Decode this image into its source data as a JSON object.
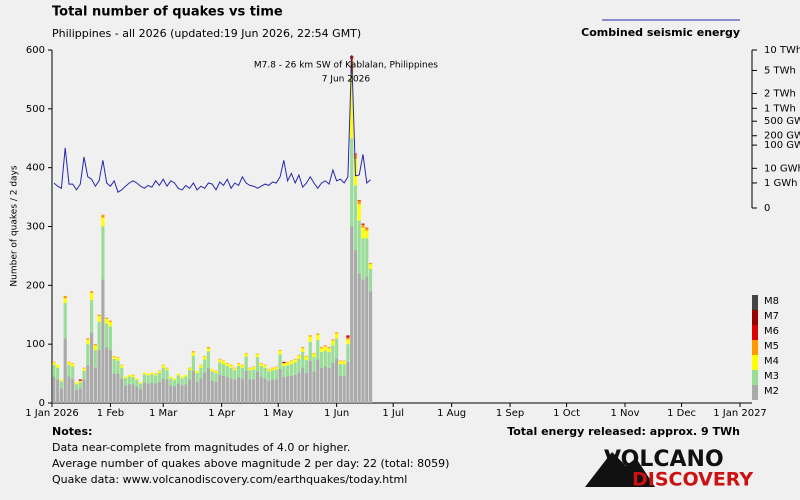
{
  "chart_data": {
    "type": "bar",
    "stacked": true,
    "title": "Total number of quakes vs time",
    "subtitle": "Philippines - all 2026 (updated:19 Jun 2026, 22:54 GMT)",
    "y_label": "Number of quakes / 2 days",
    "annotation": {
      "lines": [
        "M7.8 - 26 km SW of Kablalan, Philippines",
        "7 Jun 2026"
      ],
      "x": 157
    },
    "xlim": [
      0,
      365
    ],
    "xticks": [
      {
        "value": 0,
        "label": "1 Jan 2026"
      },
      {
        "value": 31,
        "label": "1 Feb"
      },
      {
        "value": 59,
        "label": "1 Mar"
      },
      {
        "value": 90,
        "label": "1 Apr"
      },
      {
        "value": 120,
        "label": "1 May"
      },
      {
        "value": 151,
        "label": "1 Jun"
      },
      {
        "value": 181,
        "label": "1 Jul"
      },
      {
        "value": 212,
        "label": "1 Aug"
      },
      {
        "value": 243,
        "label": "1 Sep"
      },
      {
        "value": 273,
        "label": "1 Oct"
      },
      {
        "value": 304,
        "label": "1 Nov"
      },
      {
        "value": 334,
        "label": "1 Dec"
      },
      {
        "value": 365,
        "label": "1 Jan 2027"
      }
    ],
    "ylim": [
      0,
      600
    ],
    "yticks": [
      0,
      100,
      200,
      300,
      400,
      500,
      600
    ],
    "y2lim": [
      0,
      10000
    ],
    "y2scale": "power",
    "y2exponent": 0.2,
    "y2ticks": [
      {
        "value": 10000,
        "label": "10 TWh"
      },
      {
        "value": 5000,
        "label": "5 TWh"
      },
      {
        "value": 2000,
        "label": "2 TWh"
      },
      {
        "value": 1000,
        "label": "1 TWh"
      },
      {
        "value": 500,
        "label": "500 GWh"
      },
      {
        "value": 200,
        "label": "200 GWh"
      },
      {
        "value": 100,
        "label": "100 GWh"
      },
      {
        "value": 10,
        "label": "10 GWh"
      },
      {
        "value": 1,
        "label": "1 GWh"
      },
      0
    ],
    "x": [
      0,
      2,
      4,
      6,
      8,
      10,
      12,
      14,
      16,
      18,
      20,
      22,
      24,
      26,
      28,
      30,
      32,
      34,
      36,
      38,
      40,
      42,
      44,
      46,
      48,
      50,
      52,
      54,
      56,
      58,
      60,
      62,
      64,
      66,
      68,
      70,
      72,
      74,
      76,
      78,
      80,
      82,
      84,
      86,
      88,
      90,
      92,
      94,
      96,
      98,
      100,
      102,
      104,
      106,
      108,
      110,
      112,
      114,
      116,
      118,
      120,
      122,
      124,
      126,
      128,
      130,
      132,
      134,
      136,
      138,
      140,
      142,
      144,
      146,
      148,
      150,
      152,
      154,
      156,
      158,
      160,
      162,
      164,
      166,
      168
    ],
    "series": [
      {
        "name": "M2",
        "color": "#aaaaaa",
        "values": [
          45,
          40,
          25,
          110,
          45,
          40,
          22,
          25,
          40,
          65,
          120,
          60,
          90,
          210,
          95,
          90,
          50,
          50,
          42,
          30,
          32,
          32,
          28,
          24,
          35,
          33,
          34,
          33,
          36,
          42,
          40,
          30,
          28,
          33,
          30,
          32,
          40,
          55,
          36,
          42,
          52,
          60,
          38,
          36,
          48,
          46,
          44,
          42,
          40,
          44,
          42,
          55,
          40,
          40,
          54,
          44,
          42,
          38,
          40,
          40,
          58,
          44,
          45,
          46,
          48,
          52,
          60,
          51,
          72,
          54,
          74,
          60,
          62,
          60,
          68,
          76,
          46,
          46,
          70,
          300,
          260,
          220,
          210,
          215,
          190
        ]
      },
      {
        "name": "M3",
        "color": "#99dd99",
        "values": [
          20,
          20,
          12,
          60,
          20,
          22,
          10,
          10,
          15,
          35,
          55,
          30,
          48,
          90,
          40,
          40,
          25,
          22,
          18,
          12,
          13,
          12,
          11,
          9,
          14,
          14,
          15,
          14,
          15,
          18,
          16,
          12,
          11,
          14,
          12,
          13,
          16,
          25,
          15,
          18,
          22,
          28,
          16,
          15,
          21,
          20,
          19,
          18,
          16,
          19,
          18,
          24,
          16,
          17,
          24,
          19,
          18,
          16,
          16,
          17,
          25,
          19,
          19,
          20,
          21,
          23,
          27,
          22,
          32,
          24,
          33,
          27,
          27,
          27,
          30,
          34,
          20,
          20,
          30,
          150,
          110,
          90,
          70,
          65,
          38
        ]
      },
      {
        "name": "M4",
        "color": "#ffff00",
        "values": [
          4,
          5,
          3,
          8,
          4,
          5,
          3,
          2,
          4,
          8,
          12,
          8,
          10,
          15,
          8,
          8,
          4,
          5,
          4,
          3,
          3,
          3,
          3,
          2,
          3,
          3,
          3,
          2,
          3,
          4,
          3,
          3,
          3,
          3,
          3,
          3,
          3,
          6,
          4,
          4,
          5,
          5,
          4,
          3,
          5,
          5,
          4,
          4,
          3,
          4,
          4,
          5,
          3,
          4,
          5,
          4,
          4,
          3,
          3,
          4,
          6,
          4,
          5,
          5,
          5,
          6,
          6,
          6,
          9,
          6,
          9,
          6,
          7,
          6,
          8,
          8,
          5,
          5,
          8,
          110,
          45,
          28,
          18,
          13,
          8
        ]
      },
      {
        "name": "M5",
        "color": "#ff9900",
        "values": [
          1,
          0,
          0,
          4,
          1,
          1,
          0,
          1,
          1,
          2,
          3,
          2,
          2,
          5,
          2,
          2,
          1,
          1,
          1,
          0,
          0,
          1,
          0,
          0,
          0,
          0,
          0,
          1,
          1,
          1,
          1,
          0,
          0,
          0,
          0,
          0,
          1,
          2,
          0,
          1,
          1,
          2,
          0,
          1,
          1,
          1,
          1,
          1,
          1,
          1,
          1,
          1,
          1,
          1,
          1,
          1,
          1,
          1,
          1,
          1,
          1,
          1,
          1,
          1,
          1,
          1,
          2,
          1,
          2,
          1,
          2,
          2,
          2,
          2,
          2,
          2,
          1,
          1,
          3,
          25,
          8,
          6,
          5,
          4,
          2
        ]
      },
      {
        "name": "M6",
        "color": "#dd0000",
        "values": [
          0,
          0,
          0,
          0,
          0,
          0,
          0,
          2,
          0,
          0,
          0,
          0,
          0,
          0,
          0,
          0,
          0,
          0,
          0,
          0,
          0,
          0,
          0,
          0,
          0,
          0,
          0,
          0,
          0,
          0,
          0,
          0,
          0,
          0,
          0,
          0,
          0,
          0,
          0,
          0,
          0,
          0,
          0,
          0,
          0,
          0,
          0,
          0,
          0,
          0,
          0,
          0,
          0,
          0,
          0,
          0,
          0,
          0,
          0,
          0,
          0,
          2,
          0,
          0,
          0,
          0,
          0,
          0,
          0,
          0,
          0,
          0,
          0,
          0,
          0,
          0,
          0,
          0,
          4,
          4,
          1,
          1,
          2,
          1,
          0
        ]
      },
      {
        "name": "M7",
        "color": "#990000",
        "values": [
          0,
          0,
          0,
          0,
          0,
          0,
          0,
          0,
          0,
          0,
          0,
          0,
          0,
          0,
          0,
          0,
          0,
          0,
          0,
          0,
          0,
          0,
          0,
          0,
          0,
          0,
          0,
          0,
          0,
          0,
          0,
          0,
          0,
          0,
          0,
          0,
          0,
          0,
          0,
          0,
          0,
          0,
          0,
          0,
          0,
          0,
          0,
          0,
          0,
          0,
          0,
          0,
          0,
          0,
          0,
          0,
          0,
          0,
          0,
          0,
          0,
          0,
          0,
          0,
          0,
          0,
          0,
          0,
          0,
          0,
          0,
          0,
          0,
          0,
          0,
          0,
          0,
          0,
          0,
          1,
          0,
          0,
          0,
          0,
          0
        ]
      },
      {
        "name": "M8",
        "color": "#444444",
        "values": [
          0,
          0,
          0,
          0,
          0,
          0,
          0,
          0,
          0,
          0,
          0,
          0,
          0,
          0,
          0,
          0,
          0,
          0,
          0,
          0,
          0,
          0,
          0,
          0,
          0,
          0,
          0,
          0,
          0,
          0,
          0,
          0,
          0,
          0,
          0,
          0,
          0,
          0,
          0,
          0,
          0,
          0,
          0,
          0,
          0,
          0,
          0,
          0,
          0,
          0,
          0,
          0,
          0,
          0,
          0,
          0,
          0,
          0,
          0,
          0,
          0,
          0,
          0,
          0,
          0,
          0,
          0,
          0,
          0,
          0,
          0,
          0,
          0,
          0,
          0,
          0,
          0,
          0,
          0,
          0,
          0,
          0,
          0,
          0,
          0
        ]
      },
      {
        "name": "Combined seismic energy",
        "color": "#2626b0",
        "type": "line",
        "axis": "y2",
        "values": [
          1,
          0.5,
          0.3,
          80,
          0.8,
          0.8,
          0.2,
          0.8,
          35,
          3,
          2,
          0.5,
          1.5,
          25,
          1,
          0.5,
          1.5,
          0.1,
          0.2,
          0.5,
          1,
          1.5,
          1,
          0.5,
          0.3,
          0.6,
          0.4,
          1.5,
          0.6,
          2,
          0.5,
          1.5,
          1,
          0.3,
          0.2,
          0.6,
          0.3,
          1,
          0.2,
          0.5,
          0.3,
          1,
          0.8,
          0.2,
          1.2,
          0.6,
          2,
          0.3,
          1,
          0.6,
          3,
          1,
          0.6,
          0.5,
          0.3,
          0.5,
          0.8,
          0.6,
          1.2,
          1,
          3,
          25,
          1.5,
          5,
          1,
          4,
          0.4,
          1,
          3,
          1,
          0.3,
          1,
          1.5,
          0.8,
          8,
          1.5,
          2,
          1,
          3,
          8500,
          3.5,
          4,
          45,
          1,
          1.8
        ]
      }
    ]
  },
  "total_energy": "Total energy released: approx. 9 TWh",
  "notes": {
    "heading": "Notes:",
    "lines": [
      "Data near-complete from magnitudes of 4.0 or higher.",
      "Average number of quakes above magnitude 2 per day: 22 (total: 8059)",
      "Quake data: www.volcanodiscovery.com/earthquakes/today.html"
    ]
  },
  "logo": {
    "line1": "VOLCANO",
    "line2": "DISCOVERY"
  }
}
